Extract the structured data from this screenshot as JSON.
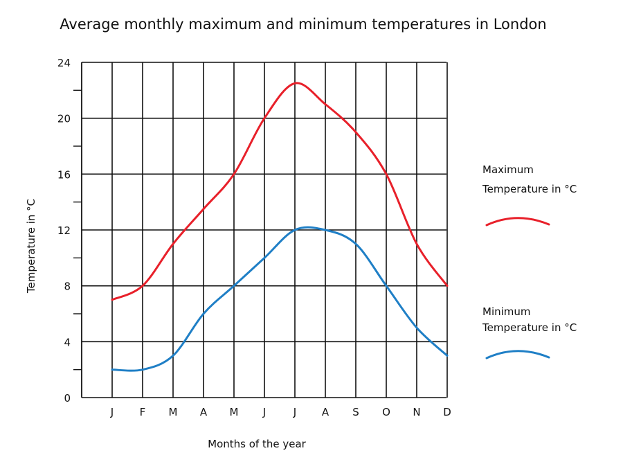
{
  "chart_data": {
    "type": "line",
    "title": "Average monthly maximum and minimum temperatures in London",
    "xlabel": "Months of the year",
    "ylabel": "Temperature in °C",
    "categories": [
      "J",
      "F",
      "M",
      "A",
      "M",
      "J",
      "J",
      "A",
      "S",
      "O",
      "N",
      "D"
    ],
    "ylim": [
      0,
      24
    ],
    "y_ticks": [
      "0",
      "4",
      "8",
      "12",
      "16",
      "20",
      "24"
    ],
    "grid": true,
    "legend_position": "right",
    "series": [
      {
        "name_line1": "Maximum",
        "name_line2": "Temperature in °C",
        "color": "#e8202a",
        "values": [
          7,
          8,
          11,
          13.5,
          16,
          20,
          22.5,
          21,
          19,
          16,
          11,
          8
        ]
      },
      {
        "name_line1": "Minimum",
        "name_line2": "Temperature in °C",
        "color": "#1f7fc6",
        "values": [
          2,
          2,
          3,
          6,
          8,
          10,
          12,
          12,
          11,
          8,
          5,
          3
        ]
      }
    ]
  }
}
